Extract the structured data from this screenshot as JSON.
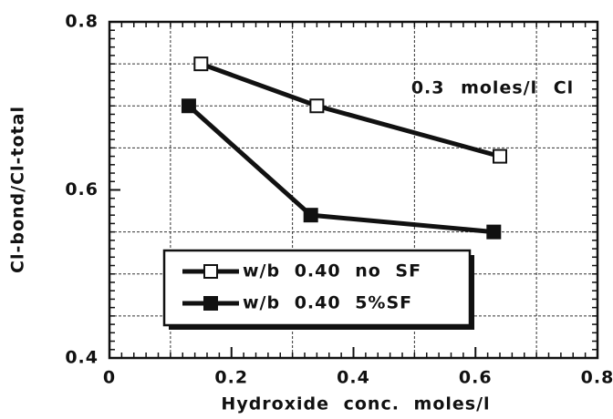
{
  "chart_data": {
    "type": "line",
    "xlabel": "Hydroxide conc. moles/l",
    "ylabel": "Cl-bond/Cl-total",
    "annotation": "0.3 moles/l Cl",
    "xlim": [
      0,
      0.8
    ],
    "xticks": [
      0,
      0.2,
      0.4,
      0.6,
      0.8
    ],
    "ylim": [
      0.4,
      0.8
    ],
    "yticks": [
      0.4,
      0.6,
      0.8
    ],
    "grid": true,
    "series": [
      {
        "name": "w/b 0.40 no SF",
        "color": "#111111",
        "marker": "open-square",
        "x": [
          0.15,
          0.34,
          0.64
        ],
        "values": [
          0.75,
          0.7,
          0.64
        ]
      },
      {
        "name": "w/b 0.40 5%SF",
        "color": "#111111",
        "marker": "filled-square",
        "x": [
          0.13,
          0.33,
          0.63
        ],
        "values": [
          0.7,
          0.57,
          0.55
        ]
      }
    ]
  }
}
